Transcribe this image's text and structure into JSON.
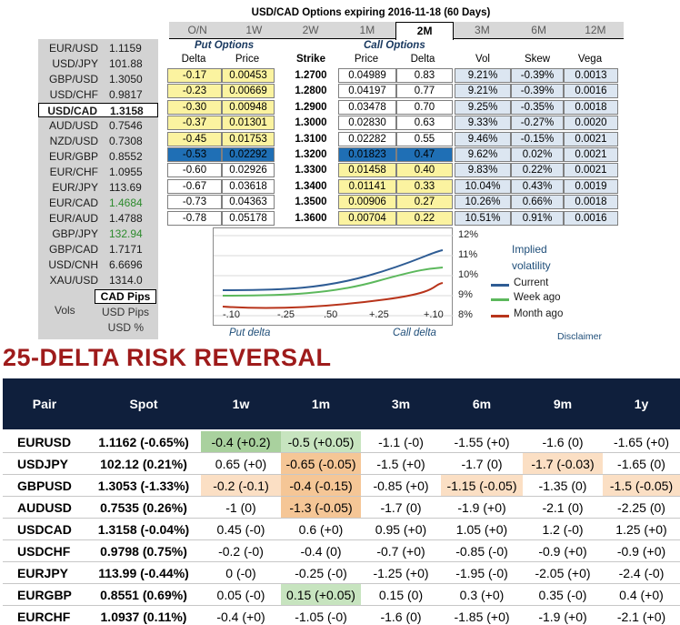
{
  "options_panel": {
    "title": "USD/CAD Options expiring 2016-11-18 (60 Days)",
    "tabs": [
      "O/N",
      "1W",
      "2W",
      "1M",
      "2M",
      "3M",
      "6M",
      "12M"
    ],
    "active_tab": "2M",
    "pairs": [
      {
        "name": "EUR/USD",
        "value": "1.1159"
      },
      {
        "name": "USD/JPY",
        "value": "101.88"
      },
      {
        "name": "GBP/USD",
        "value": "1.3050"
      },
      {
        "name": "USD/CHF",
        "value": "0.9817"
      },
      {
        "name": "USD/CAD",
        "value": "1.3158",
        "selected": true
      },
      {
        "name": "AUD/USD",
        "value": "0.7546"
      },
      {
        "name": "NZD/USD",
        "value": "0.7308"
      },
      {
        "name": "EUR/GBP",
        "value": "0.8552"
      },
      {
        "name": "EUR/CHF",
        "value": "1.0955"
      },
      {
        "name": "EUR/JPY",
        "value": "113.69"
      },
      {
        "name": "EUR/CAD",
        "value": "1.4684",
        "color": "green"
      },
      {
        "name": "EUR/AUD",
        "value": "1.4788"
      },
      {
        "name": "GBP/JPY",
        "value": "132.94",
        "color": "green"
      },
      {
        "name": "GBP/CAD",
        "value": "1.7171"
      },
      {
        "name": "USD/CNH",
        "value": "6.6696"
      },
      {
        "name": "XAU/USD",
        "value": "1314.0"
      }
    ],
    "cad_pips": "CAD Pips",
    "vols_label": "Vols",
    "usd_pips": "USD Pips",
    "usd_pct": "USD %",
    "put_header": "Put Options",
    "call_header": "Call Options",
    "columns": [
      "Delta",
      "Price",
      "Strike",
      "Price",
      "Delta",
      "Vol",
      "Skew",
      "Vega"
    ],
    "rows": [
      {
        "put_delta": "-0.17",
        "put_price": "0.00453",
        "strike": "1.2700",
        "call_price": "0.04989",
        "call_delta": "0.83",
        "vol": "9.21%",
        "skew": "-0.39%",
        "vega": "0.0013"
      },
      {
        "put_delta": "-0.23",
        "put_price": "0.00669",
        "strike": "1.2800",
        "call_price": "0.04197",
        "call_delta": "0.77",
        "vol": "9.21%",
        "skew": "-0.39%",
        "vega": "0.0016"
      },
      {
        "put_delta": "-0.30",
        "put_price": "0.00948",
        "strike": "1.2900",
        "call_price": "0.03478",
        "call_delta": "0.70",
        "vol": "9.25%",
        "skew": "-0.35%",
        "vega": "0.0018"
      },
      {
        "put_delta": "-0.37",
        "put_price": "0.01301",
        "strike": "1.3000",
        "call_price": "0.02830",
        "call_delta": "0.63",
        "vol": "9.33%",
        "skew": "-0.27%",
        "vega": "0.0020"
      },
      {
        "put_delta": "-0.45",
        "put_price": "0.01753",
        "strike": "1.3100",
        "call_price": "0.02282",
        "call_delta": "0.55",
        "vol": "9.46%",
        "skew": "-0.15%",
        "vega": "0.0021"
      },
      {
        "put_delta": "-0.53",
        "put_price": "0.02292",
        "strike": "1.3200",
        "call_price": "0.01823",
        "call_delta": "0.47",
        "vol": "9.62%",
        "skew": "0.02%",
        "vega": "0.0021",
        "atm": true
      },
      {
        "put_delta": "-0.60",
        "put_price": "0.02926",
        "strike": "1.3300",
        "call_price": "0.01458",
        "call_delta": "0.40",
        "vol": "9.83%",
        "skew": "0.22%",
        "vega": "0.0021"
      },
      {
        "put_delta": "-0.67",
        "put_price": "0.03618",
        "strike": "1.3400",
        "call_price": "0.01141",
        "call_delta": "0.33",
        "vol": "10.04%",
        "skew": "0.43%",
        "vega": "0.0019"
      },
      {
        "put_delta": "-0.73",
        "put_price": "0.04363",
        "strike": "1.3500",
        "call_price": "0.00906",
        "call_delta": "0.27",
        "vol": "10.26%",
        "skew": "0.66%",
        "vega": "0.0018"
      },
      {
        "put_delta": "-0.78",
        "put_price": "0.05178",
        "strike": "1.3600",
        "call_price": "0.00704",
        "call_delta": "0.22",
        "vol": "10.51%",
        "skew": "0.91%",
        "vega": "0.0016"
      }
    ],
    "mini_chart": {
      "x_ticks": [
        "-.10",
        "-.25",
        ".50",
        "+.25",
        "+.10"
      ],
      "y_ticks": [
        "12%",
        "11%",
        "10%",
        "9%",
        "8%"
      ],
      "legend_title": "Implied volatility",
      "legend": [
        {
          "label": "Current",
          "color": "#2e5c94"
        },
        {
          "label": "Week ago",
          "color": "#5cb85c"
        },
        {
          "label": "Month ago",
          "color": "#b8341b"
        }
      ],
      "put_delta_label": "Put delta",
      "call_delta_label": "Call delta"
    },
    "disclaimer": "Disclaimer"
  },
  "risk_reversal": {
    "title": "25-DELTA RISK REVERSAL",
    "headers": [
      "Pair",
      "Spot",
      "1w",
      "1m",
      "3m",
      "6m",
      "9m",
      "1y"
    ],
    "rows": [
      {
        "pair": "EURUSD",
        "spot": "1.1162 (-0.65%)",
        "c": [
          "-0.4 (+0.2)",
          "-0.5 (+0.05)",
          "-1.1 (-0)",
          "-1.55 (+0)",
          "-1.6 (0)",
          "-1.65 (+0)"
        ],
        "bg": [
          "g1",
          "g2",
          "",
          "",
          "",
          ""
        ]
      },
      {
        "pair": "USDJPY",
        "spot": "102.12 (0.21%)",
        "c": [
          "0.65 (+0)",
          "-0.65 (-0.05)",
          "-1.5 (+0)",
          "-1.7 (0)",
          "-1.7 (-0.03)",
          "-1.65 (0)"
        ],
        "bg": [
          "",
          "o1",
          "",
          "",
          "o2",
          ""
        ]
      },
      {
        "pair": "GBPUSD",
        "spot": "1.3053 (-1.33%)",
        "c": [
          "-0.2 (-0.1)",
          "-0.4 (-0.15)",
          "-0.85 (+0)",
          "-1.15 (-0.05)",
          "-1.35 (0)",
          "-1.5 (-0.05)"
        ],
        "bg": [
          "o2",
          "o1",
          "",
          "o2",
          "",
          "o2"
        ]
      },
      {
        "pair": "AUDUSD",
        "spot": "0.7535 (0.26%)",
        "c": [
          "-1 (0)",
          "-1.3 (-0.05)",
          "-1.7 (0)",
          "-1.9 (+0)",
          "-2.1 (0)",
          "-2.25 (0)"
        ],
        "bg": [
          "",
          "o1",
          "",
          "",
          "",
          ""
        ]
      },
      {
        "pair": "USDCAD",
        "spot": "1.3158 (-0.04%)",
        "c": [
          "0.45 (-0)",
          "0.6 (+0)",
          "0.95 (+0)",
          "1.05 (+0)",
          "1.2 (-0)",
          "1.25 (+0)"
        ],
        "bg": [
          "",
          "",
          "",
          "",
          "",
          ""
        ]
      },
      {
        "pair": "USDCHF",
        "spot": "0.9798 (0.75%)",
        "c": [
          "-0.2 (-0)",
          "-0.4 (0)",
          "-0.7 (+0)",
          "-0.85 (-0)",
          "-0.9 (+0)",
          "-0.9 (+0)"
        ],
        "bg": [
          "",
          "",
          "",
          "",
          "",
          ""
        ]
      },
      {
        "pair": "EURJPY",
        "spot": "113.99 (-0.44%)",
        "c": [
          "0 (-0)",
          "-0.25 (-0)",
          "-1.25 (+0)",
          "-1.95 (-0)",
          "-2.05 (+0)",
          "-2.4 (-0)"
        ],
        "bg": [
          "",
          "",
          "",
          "",
          "",
          ""
        ]
      },
      {
        "pair": "EURGBP",
        "spot": "0.8551 (0.69%)",
        "c": [
          "0.05 (-0)",
          "0.15 (+0.05)",
          "0.15 (0)",
          "0.3 (+0)",
          "0.35 (-0)",
          "0.4 (+0)"
        ],
        "bg": [
          "",
          "g2",
          "",
          "",
          "",
          ""
        ]
      },
      {
        "pair": "EURCHF",
        "spot": "1.0937 (0.11%)",
        "c": [
          "-0.4 (+0)",
          "-1.05 (-0)",
          "-1.6 (0)",
          "-1.85 (+0)",
          "-1.9 (+0)",
          "-2.1 (+0)"
        ],
        "bg": [
          "",
          "",
          "",
          "",
          "",
          ""
        ]
      }
    ]
  }
}
